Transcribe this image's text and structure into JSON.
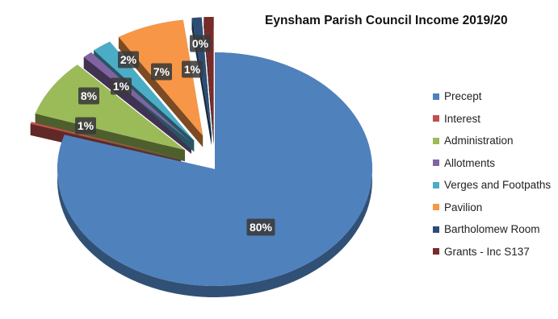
{
  "chart_data": {
    "type": "pie",
    "title": "Eynsham Parish Council Income 2019/20",
    "legend_position": "right",
    "three_d": true,
    "exploded": true,
    "slices": [
      {
        "name": "Precept",
        "value": 80,
        "label": "80%",
        "color": "#4f81bd"
      },
      {
        "name": "Interest",
        "value": 0.3,
        "label": "0%",
        "color": "#c0504d"
      },
      {
        "name": "Administration",
        "value": 8,
        "label": "8%",
        "color": "#9bbb59"
      },
      {
        "name": "Allotments",
        "value": 1,
        "label": "1%",
        "color": "#8064a2"
      },
      {
        "name": "Verges and Footpaths",
        "value": 2,
        "label": "2%",
        "color": "#4bacc6"
      },
      {
        "name": "Pavilion",
        "value": 7,
        "label": "7%",
        "color": "#f79646"
      },
      {
        "name": "Bartholomew Room",
        "value": 1,
        "label": "1%",
        "color": "#2c4d75"
      },
      {
        "name": "Grants - Inc S137",
        "value": 1,
        "label": "1%",
        "color": "#772c2a"
      }
    ]
  }
}
